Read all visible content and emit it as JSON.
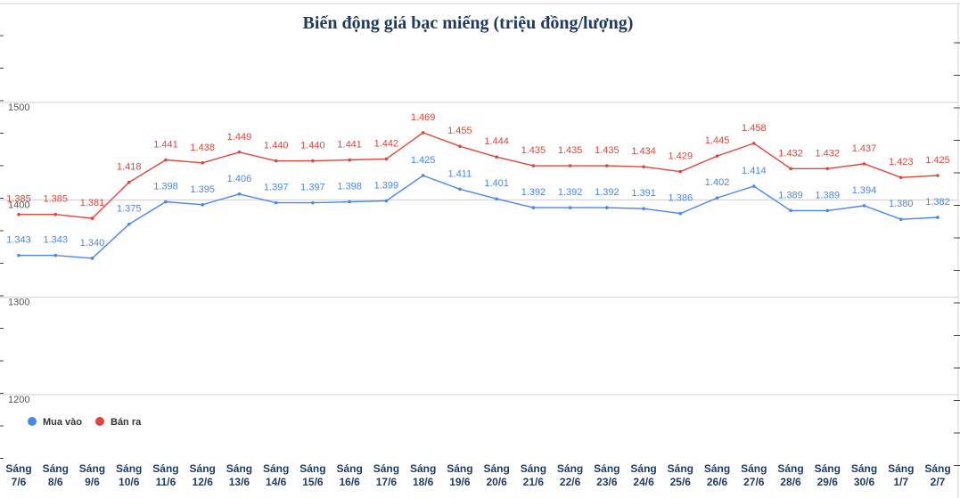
{
  "chart_data": {
    "type": "line",
    "title": "Biến động giá bạc miếng (triệu đồng/lượng)",
    "categories": [
      [
        "Sáng",
        "7/6"
      ],
      [
        "Sáng",
        "8/6"
      ],
      [
        "Sáng",
        "9/6"
      ],
      [
        "Sáng",
        "10/6"
      ],
      [
        "Sáng",
        "11/6"
      ],
      [
        "Sáng",
        "12/6"
      ],
      [
        "Sáng",
        "13/6"
      ],
      [
        "Sáng",
        "14/6"
      ],
      [
        "Sáng",
        "15/6"
      ],
      [
        "Sáng",
        "16/6"
      ],
      [
        "Sáng",
        "17/6"
      ],
      [
        "Sáng",
        "18/6"
      ],
      [
        "Sáng",
        "19/6"
      ],
      [
        "Sáng",
        "20/6"
      ],
      [
        "Sáng",
        "21/6"
      ],
      [
        "Sáng",
        "22/6"
      ],
      [
        "Sáng",
        "23/6"
      ],
      [
        "Sáng",
        "24/6"
      ],
      [
        "Sáng",
        "25/6"
      ],
      [
        "Sáng",
        "26/6"
      ],
      [
        "Sáng",
        "27/6"
      ],
      [
        "Sáng",
        "28/6"
      ],
      [
        "Sáng",
        "29/6"
      ],
      [
        "Sáng",
        "30/6"
      ],
      [
        "Sáng",
        "1/7"
      ],
      [
        "Sáng",
        "2/7"
      ]
    ],
    "y_ticks": [
      "1200",
      "1300",
      "1400",
      "1500"
    ],
    "ylim": [
      1200,
      1500
    ],
    "grid": true,
    "legend_position": "bottom-left",
    "series": [
      {
        "name": "Mua vào",
        "color": "#4a86e8",
        "values": [
          1343,
          1343,
          1340,
          1375,
          1398,
          1395,
          1406,
          1397,
          1397,
          1398,
          1399,
          1425,
          1411,
          1401,
          1392,
          1392,
          1392,
          1391,
          1386,
          1402,
          1414,
          1389,
          1389,
          1394,
          1380,
          1382
        ],
        "labels": [
          "1.343",
          "1.343",
          "1.340",
          "1.375",
          "1.398",
          "1.395",
          "1.406",
          "1.397",
          "1.397",
          "1.398",
          "1.399",
          "1.425",
          "1.411",
          "1.401",
          "1.392",
          "1.392",
          "1.392",
          "1.391",
          "1.386",
          "1.402",
          "1.414",
          "1.389",
          "1.389",
          "1.394",
          "1.380",
          "1.382"
        ]
      },
      {
        "name": "Bán ra",
        "color": "#e0443b",
        "values": [
          1385,
          1385,
          1381,
          1418,
          1441,
          1438,
          1449,
          1440,
          1440,
          1441,
          1442,
          1469,
          1455,
          1444,
          1435,
          1435,
          1435,
          1434,
          1429,
          1445,
          1458,
          1432,
          1432,
          1437,
          1423,
          1425
        ],
        "labels": [
          "1.385",
          "1.385",
          "1.381",
          "1.418",
          "1.441",
          "1.438",
          "1.449",
          "1.440",
          "1.440",
          "1.441",
          "1.442",
          "1.469",
          "1.455",
          "1.444",
          "1.435",
          "1.435",
          "1.435",
          "1.434",
          "1.429",
          "1.445",
          "1.458",
          "1.432",
          "1.432",
          "1.437",
          "1.423",
          "1.425"
        ]
      }
    ]
  }
}
